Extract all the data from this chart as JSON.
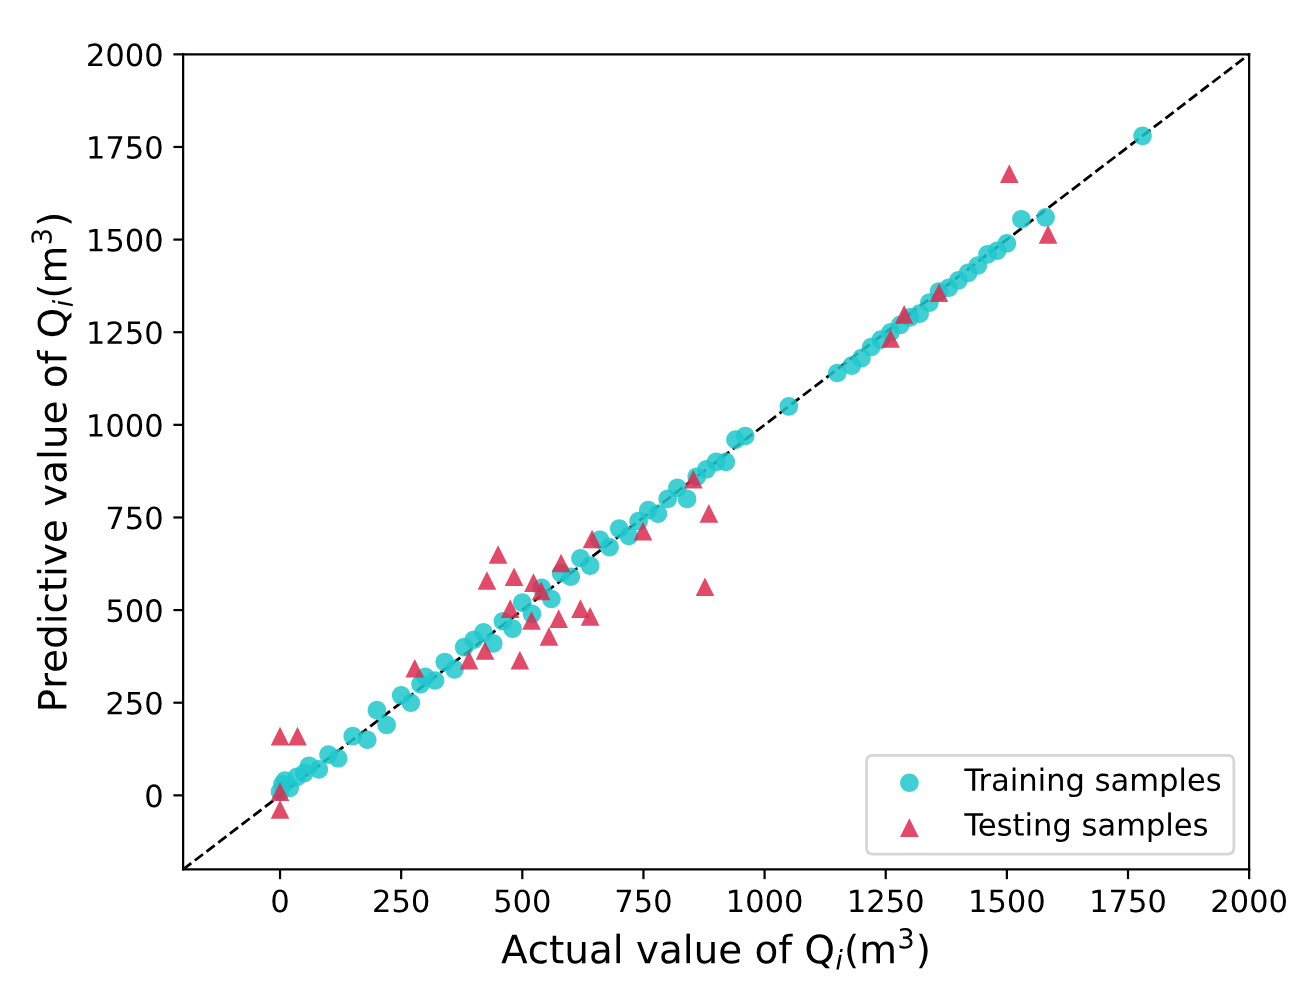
{
  "chart_data": {
    "type": "scatter",
    "xlabel": "Actual value of Q$_{i}$(m$^{3}$)",
    "ylabel": "Predictive value of Q$_{i}$(m$^{3}$)",
    "xlim": [
      -200,
      2000
    ],
    "ylim": [
      -200,
      2000
    ],
    "xticks": [
      0,
      250,
      500,
      750,
      1000,
      1250,
      1500,
      1750,
      2000
    ],
    "yticks": [
      0,
      250,
      500,
      750,
      1000,
      1250,
      1500,
      1750,
      2000
    ],
    "grid": false,
    "legend": "bottom right",
    "series": [
      {
        "type": "line",
        "color": "#000000",
        "line_style": "dashed",
        "marker": "none",
        "x": [
          -200,
          2000
        ],
        "values": [
          -200,
          2000
        ]
      },
      {
        "name": "Training samples",
        "marker": "circle",
        "color": "#1fc8cc",
        "x": [
          0,
          5,
          10,
          20,
          35,
          50,
          60,
          80,
          100,
          120,
          150,
          180,
          200,
          220,
          250,
          270,
          290,
          300,
          320,
          340,
          360,
          380,
          400,
          420,
          440,
          460,
          480,
          500,
          520,
          540,
          560,
          580,
          600,
          620,
          640,
          660,
          680,
          700,
          720,
          740,
          760,
          780,
          800,
          820,
          840,
          860,
          880,
          900,
          920,
          940,
          960,
          1050,
          1150,
          1180,
          1200,
          1220,
          1240,
          1260,
          1280,
          1300,
          1320,
          1340,
          1360,
          1380,
          1400,
          1420,
          1440,
          1460,
          1480,
          1500,
          1530,
          1580,
          1780
        ],
        "values": [
          10,
          30,
          40,
          20,
          50,
          60,
          80,
          70,
          110,
          100,
          160,
          150,
          230,
          190,
          270,
          250,
          300,
          320,
          310,
          360,
          340,
          400,
          420,
          440,
          410,
          470,
          450,
          520,
          490,
          560,
          530,
          600,
          590,
          640,
          620,
          690,
          670,
          720,
          700,
          740,
          770,
          760,
          800,
          830,
          800,
          860,
          880,
          900,
          900,
          960,
          970,
          1050,
          1140,
          1160,
          1180,
          1210,
          1230,
          1250,
          1270,
          1290,
          1300,
          1330,
          1360,
          1370,
          1390,
          1410,
          1430,
          1460,
          1470,
          1490,
          1555,
          1560,
          1780
        ]
      },
      {
        "name": "Testing samples",
        "marker": "triangle",
        "color": "#dc2a4f",
        "x": [
          0,
          0,
          0,
          36,
          278,
          390,
          423,
          427,
          450,
          475,
          483,
          495,
          519,
          523,
          539,
          555,
          575,
          580,
          620,
          640,
          644,
          749,
          853,
          877,
          885,
          1260,
          1288,
          1360,
          1505,
          1585
        ],
        "values": [
          10,
          -38,
          160,
          160,
          343,
          365,
          391,
          580,
          650,
          504,
          590,
          365,
          472,
          574,
          552,
          429,
          477,
          627,
          504,
          483,
          692,
          713,
          853,
          563,
          761,
          1233,
          1298,
          1357,
          1678,
          1514
        ]
      }
    ]
  }
}
